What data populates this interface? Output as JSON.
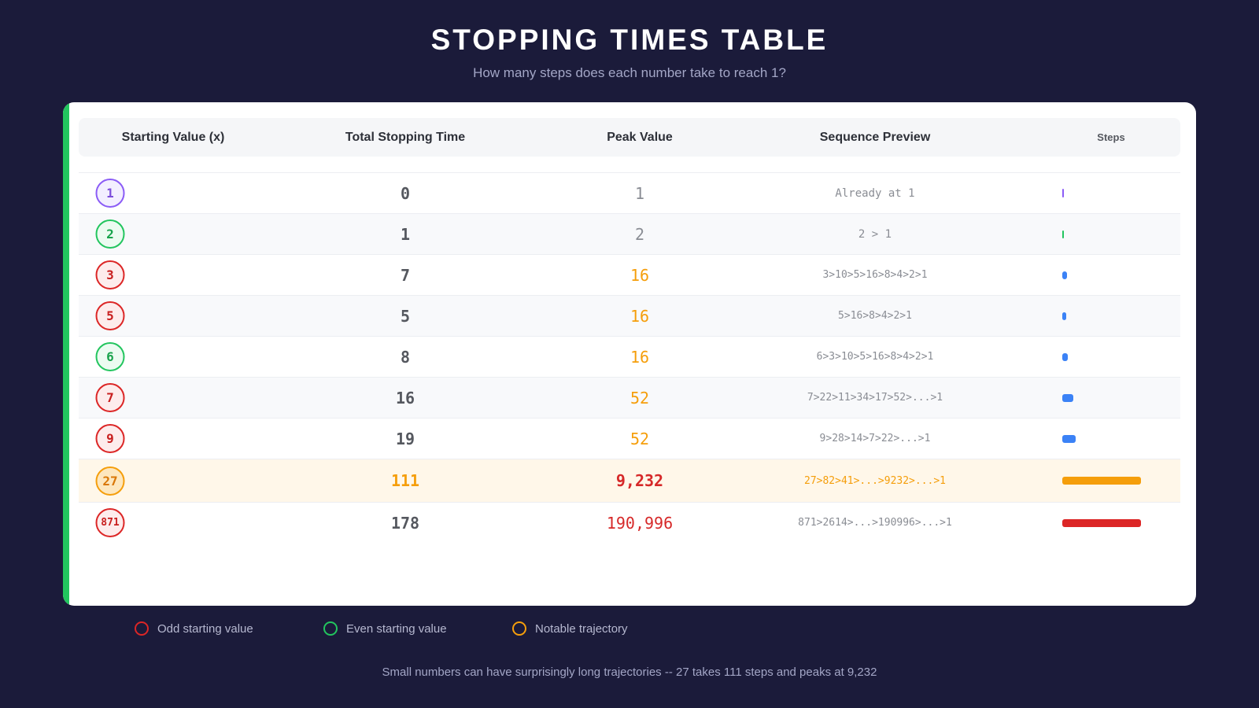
{
  "title": "STOPPING TIMES TABLE",
  "subtitle": "How many steps does each number take to reach 1?",
  "chart_data": {
    "type": "table",
    "columns": [
      "Starting Value (x)",
      "Total Stopping Time",
      "Peak Value",
      "Sequence Preview",
      "Steps"
    ],
    "rows": [
      {
        "x": "1",
        "kind": "special",
        "stopping_time": "0",
        "peak": "1",
        "sequence": "Already at 1",
        "steps": 0
      },
      {
        "x": "2",
        "kind": "even",
        "stopping_time": "1",
        "peak": "2",
        "sequence": "2 > 1",
        "steps": 1
      },
      {
        "x": "3",
        "kind": "odd",
        "stopping_time": "7",
        "peak": "16",
        "sequence": "3>10>5>16>8>4>2>1",
        "steps": 7
      },
      {
        "x": "5",
        "kind": "odd",
        "stopping_time": "5",
        "peak": "16",
        "sequence": "5>16>8>4>2>1",
        "steps": 5
      },
      {
        "x": "6",
        "kind": "even",
        "stopping_time": "8",
        "peak": "16",
        "sequence": "6>3>10>5>16>8>4>2>1",
        "steps": 8
      },
      {
        "x": "7",
        "kind": "odd",
        "stopping_time": "16",
        "peak": "52",
        "sequence": "7>22>11>34>17>52>...>1",
        "steps": 16
      },
      {
        "x": "9",
        "kind": "odd",
        "stopping_time": "19",
        "peak": "52",
        "sequence": "9>28>14>7>22>...>1",
        "steps": 19
      },
      {
        "x": "27",
        "kind": "notable",
        "stopping_time": "111",
        "peak": "9,232",
        "sequence": "27>82>41>...>9232>...>1",
        "steps": 111
      },
      {
        "x": "871",
        "kind": "odd",
        "stopping_time": "178",
        "peak": "190,996",
        "sequence": "871>2614>...>190996>...>1",
        "steps": 178
      }
    ],
    "steps_bar_max": 111,
    "colors": {
      "odd": "#dc2626",
      "even": "#22c55e",
      "notable": "#f59e0b",
      "special": "#8b5cf6",
      "bar_default": "#3b82f6"
    }
  },
  "legend": [
    {
      "label": "Odd starting value",
      "color": "#dc2626"
    },
    {
      "label": "Even starting value",
      "color": "#22c55e"
    },
    {
      "label": "Notable trajectory",
      "color": "#f59e0b"
    }
  ],
  "footer": "Small numbers can have surprisingly long trajectories -- 27 takes 111 steps and peaks at 9,232"
}
